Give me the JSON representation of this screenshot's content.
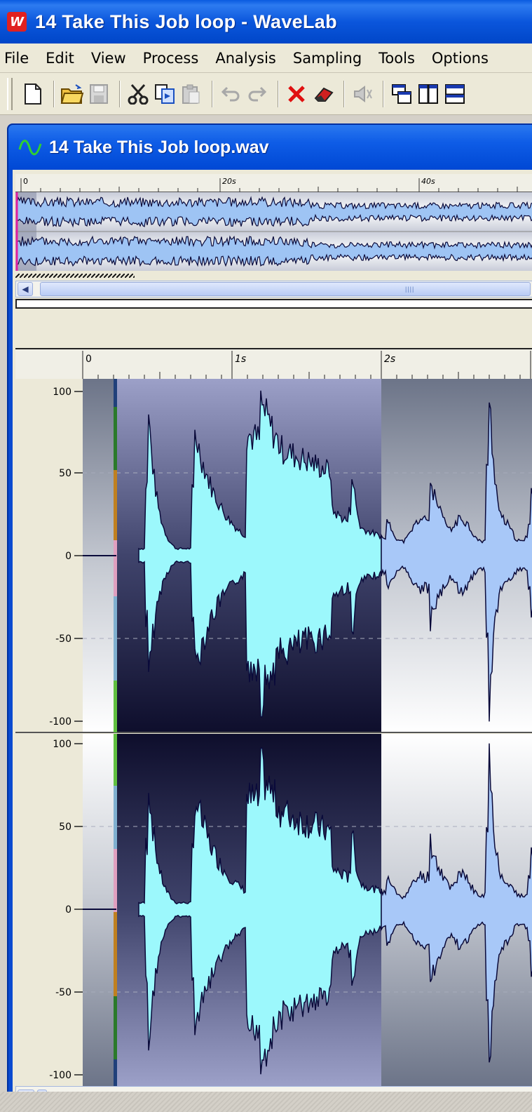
{
  "app": {
    "title": "14 Take This Job loop - WaveLab",
    "logo_letter": "W"
  },
  "menu": [
    "File",
    "Edit",
    "View",
    "Process",
    "Analysis",
    "Sampling",
    "Tools",
    "Options"
  ],
  "toolbar": {
    "icons": [
      "new-file-icon",
      "open-folder-icon",
      "save-icon",
      "cut-icon",
      "copy-icon",
      "paste-icon",
      "undo-icon",
      "redo-icon",
      "delete-icon",
      "eraser-icon",
      "mute-icon",
      "cascade-windows-icon",
      "tile-vertical-icon",
      "tile-horizontal-icon"
    ]
  },
  "document": {
    "title": "14 Take This Job loop.wav",
    "overview_ruler": [
      "0",
      "20s",
      "40s"
    ],
    "main_ruler": [
      "0",
      "1s",
      "2s"
    ],
    "amplitude_labels_top": [
      "100",
      "50",
      "0",
      "-50",
      "-100"
    ],
    "amplitude_labels_bottom": [
      "100",
      "50",
      "0",
      "-50",
      "-100"
    ]
  },
  "colors": {
    "title_bar": "#0b56dc",
    "waveform_selected": "#9cf8fc",
    "waveform_unselected": "#a8c8f8",
    "waveform_outline": "#0a0a3a",
    "cursor_line": "#e020a0",
    "scroll_thumb": "#c4d2f4"
  }
}
